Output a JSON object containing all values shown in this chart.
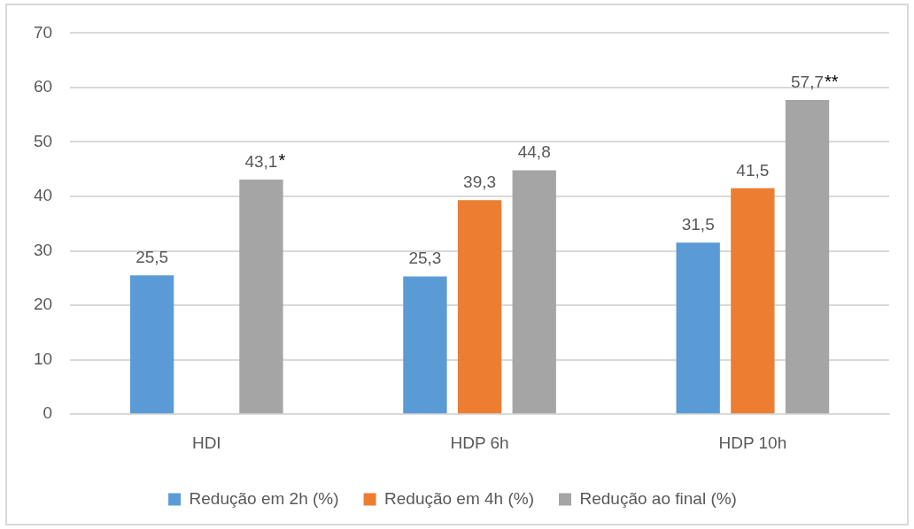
{
  "chart_data": {
    "type": "bar",
    "categories": [
      "HDI",
      "HDP 6h",
      "HDP 10h"
    ],
    "series": [
      {
        "name": "Redução em 2h (%)",
        "color": "#5b9bd5",
        "values": [
          25.5,
          25.3,
          31.5
        ],
        "value_labels": [
          "25,5",
          "25,3",
          "31,5"
        ]
      },
      {
        "name": "Redução em 4h (%)",
        "color": "#ed7d31",
        "values": [
          null,
          39.3,
          41.5
        ],
        "value_labels": [
          null,
          "39,3",
          "41,5"
        ]
      },
      {
        "name": "Redução ao final (%)",
        "color": "#a5a5a5",
        "values": [
          43.1,
          44.8,
          57.7
        ],
        "value_labels": [
          "43,1",
          "44,8",
          "57,7"
        ]
      }
    ],
    "ylim": [
      0,
      70
    ],
    "yticks": [
      0,
      10,
      20,
      30,
      40,
      50,
      60,
      70
    ],
    "grid": "y",
    "legend": "bottom",
    "annotations": [
      "*",
      "**"
    ]
  }
}
